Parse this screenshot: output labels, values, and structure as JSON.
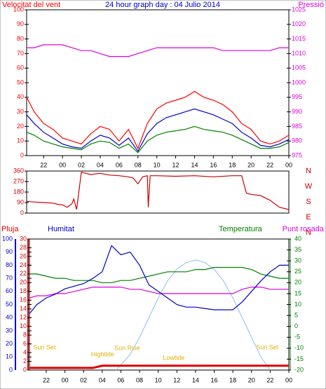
{
  "chart_data": [
    {
      "type": "line",
      "title": "24 hour graph day : 04 Julio 2014",
      "ylabel": "Velocitat del vent",
      "x": [
        -3.8,
        -3,
        -2,
        -1,
        0,
        1,
        2,
        3,
        4,
        5,
        6,
        7,
        8,
        9,
        10,
        11,
        12,
        13,
        14,
        15,
        16,
        17,
        18,
        19,
        20,
        21,
        22,
        23,
        24
      ],
      "xlim": [
        -3.8,
        24
      ],
      "xticks": [
        {
          "value": -2,
          "label": "22"
        },
        {
          "value": 0,
          "label": "00"
        },
        {
          "value": 2,
          "label": "02"
        },
        {
          "value": 4,
          "label": "04"
        },
        {
          "value": 6,
          "label": "06"
        },
        {
          "value": 8,
          "label": "08"
        },
        10,
        12,
        14,
        16,
        18,
        20,
        22,
        {
          "value": 24,
          "label": "00"
        }
      ],
      "ylim": [
        0,
        100
      ],
      "yticks": [
        0,
        10,
        20,
        30,
        40,
        50,
        60,
        70,
        80,
        90,
        100
      ],
      "y2lim": [
        975,
        1025
      ],
      "y2ticks": [
        975,
        980,
        985,
        990,
        995,
        1000,
        1005,
        1010,
        1015,
        1020,
        1025
      ],
      "series": [
        {
          "color": "#ff0000",
          "values": [
            40,
            30,
            22,
            18,
            12,
            10,
            8,
            15,
            20,
            18,
            10,
            18,
            5,
            22,
            32,
            36,
            38,
            40,
            44,
            40,
            38,
            35,
            30,
            22,
            18,
            10,
            8,
            10,
            14
          ]
        },
        {
          "color": "#008000",
          "values": [
            16,
            14,
            10,
            8,
            6,
            5,
            4,
            8,
            10,
            9,
            5,
            8,
            2,
            10,
            14,
            16,
            17,
            18,
            20,
            18,
            17,
            16,
            14,
            11,
            8,
            5,
            5,
            6,
            9
          ]
        },
        {
          "color": "#0000cc",
          "values": [
            28,
            22,
            16,
            12,
            8,
            6,
            5,
            10,
            14,
            12,
            7,
            12,
            3,
            15,
            22,
            26,
            28,
            30,
            32,
            30,
            28,
            25,
            22,
            16,
            12,
            7,
            6,
            8,
            11
          ]
        },
        {
          "name": "Pressió",
          "color": "#dd00dd",
          "axis": "y2",
          "values": [
            1012,
            1012,
            1013,
            1013,
            1013,
            1012,
            1011,
            1011,
            1010,
            1009,
            1009,
            1009,
            1010,
            1011,
            1012,
            1012,
            1012,
            1012,
            1012,
            1012,
            1012,
            1011,
            1011,
            1011,
            1011,
            1011,
            1011,
            1012,
            1012
          ]
        }
      ]
    },
    {
      "type": "line",
      "x": [
        -3.8,
        -3,
        -2,
        -1,
        -0.5,
        0,
        0.5,
        1,
        1.2,
        1.5,
        2,
        3,
        4,
        5,
        6,
        7,
        7.5,
        8,
        8.5,
        9,
        9.1,
        9.3,
        10,
        12,
        14,
        16,
        18,
        19,
        19.5,
        20,
        21,
        22,
        23,
        24
      ],
      "xlim": [
        -3.8,
        24
      ],
      "ylim": [
        0,
        360
      ],
      "yticks": [
        0,
        90,
        180,
        270,
        360
      ],
      "compass": [
        "N",
        "W",
        "S",
        "E",
        "N"
      ],
      "series": [
        {
          "color": "#cc0000",
          "values": [
            100,
            95,
            90,
            85,
            75,
            70,
            50,
            80,
            120,
            30,
            350,
            330,
            340,
            325,
            320,
            310,
            300,
            250,
            310,
            320,
            50,
            320,
            320,
            315,
            320,
            310,
            320,
            320,
            170,
            160,
            150,
            110,
            50,
            30
          ]
        }
      ]
    },
    {
      "type": "line",
      "x": [
        -3.8,
        -3,
        -2,
        -1,
        0,
        1,
        2,
        3,
        4,
        5,
        6,
        7,
        8,
        9,
        10,
        11,
        12,
        13,
        14,
        15,
        16,
        17,
        18,
        19,
        20,
        21,
        22,
        23,
        24
      ],
      "xlim": [
        -3.8,
        24
      ],
      "xticks": [
        {
          "value": -2,
          "label": "22"
        },
        {
          "value": 0,
          "label": "00"
        },
        {
          "value": 2,
          "label": "02"
        },
        {
          "value": 4,
          "label": "04"
        },
        {
          "value": 6,
          "label": "06"
        },
        {
          "value": 8,
          "label": "08"
        },
        10,
        12,
        14,
        16,
        18,
        20,
        22,
        {
          "value": 24,
          "label": "00"
        }
      ],
      "ylim": [
        0,
        100
      ],
      "yticks": [
        0,
        10,
        20,
        30,
        40,
        50,
        60,
        70,
        80,
        90,
        100
      ],
      "y3lim": [
        0,
        30
      ],
      "y3ticks": [
        0,
        2,
        4,
        6,
        8,
        10,
        12,
        14,
        16,
        18,
        20,
        22,
        24,
        26,
        28,
        30
      ],
      "y2lim": [
        -20,
        40
      ],
      "y2ticks": [
        -20,
        -15,
        -10,
        -5,
        0,
        5,
        10,
        15,
        20,
        25,
        30,
        35,
        40
      ],
      "series": [
        {
          "color": "#a0c8f0",
          "x": [
            5.5,
            7,
            8,
            9,
            10,
            11,
            12,
            13,
            14,
            15,
            16,
            17,
            18,
            19,
            20,
            21,
            22
          ],
          "values": [
            0,
            12,
            25,
            40,
            55,
            68,
            77,
            82,
            84,
            82,
            77,
            68,
            55,
            40,
            25,
            10,
            0
          ]
        },
        {
          "name": "Pluja",
          "color": "#dd0000",
          "axis": "y3",
          "values": [
            0.5,
            0.5,
            0.5,
            0.5,
            0.5,
            0.5,
            0.5,
            0.5,
            1,
            1,
            1,
            1,
            1,
            1,
            1,
            1,
            1,
            1,
            1,
            1,
            1,
            1,
            1,
            1,
            1,
            1,
            1,
            1,
            1
          ]
        },
        {
          "name": "Temperatura",
          "color": "#008000",
          "axis": "y2",
          "values": [
            24,
            24,
            23,
            22,
            22,
            21,
            21,
            21,
            20,
            20,
            21,
            21,
            22,
            23,
            24,
            25,
            25,
            25,
            26,
            26,
            27,
            27,
            27,
            27,
            26,
            24,
            23,
            22,
            22
          ]
        },
        {
          "name": "Punt rosada",
          "color": "#dd00dd",
          "axis": "y2",
          "values": [
            13,
            14,
            14,
            15,
            15,
            16,
            17,
            18,
            18,
            18,
            18,
            17,
            17,
            16,
            15,
            15,
            15,
            15,
            15,
            15,
            15,
            15,
            15,
            17,
            18,
            18,
            17,
            17,
            17
          ]
        },
        {
          "name": "Humitat",
          "color": "#0000cc",
          "values": [
            43,
            50,
            55,
            58,
            62,
            64,
            66,
            70,
            75,
            95,
            88,
            90,
            80,
            65,
            60,
            55,
            50,
            48,
            48,
            47,
            46,
            46,
            46,
            52,
            60,
            68,
            75,
            80,
            80
          ]
        }
      ],
      "annotations": [
        {
          "text": "Sun Set",
          "x": -3.4
        },
        {
          "text": "Hightide",
          "x": 2.8
        },
        {
          "text": "Sun Rise",
          "x": 5.3
        },
        {
          "text": "Lowtide",
          "x": 10.5
        },
        {
          "text": "Sun Set",
          "x": 20.5
        }
      ]
    }
  ]
}
